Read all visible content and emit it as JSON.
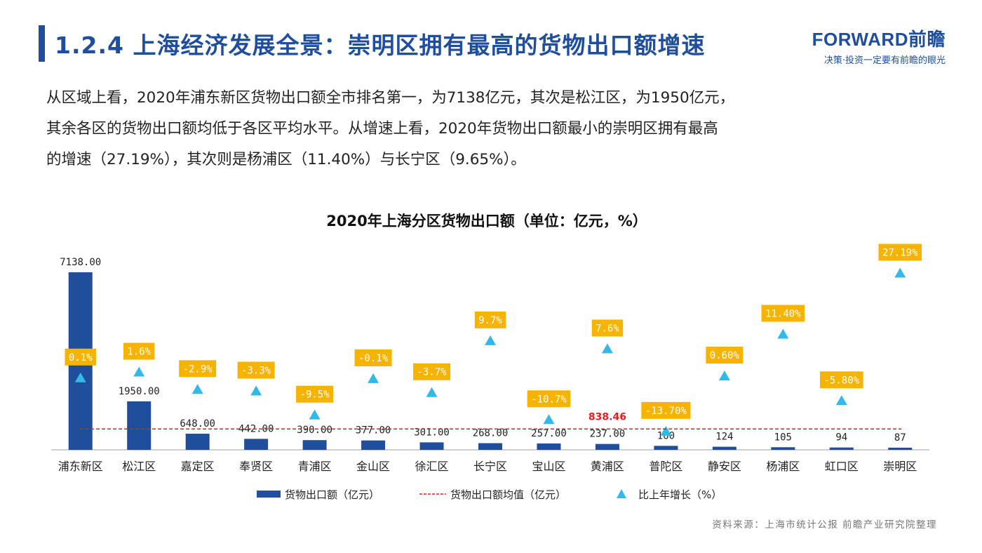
{
  "header": {
    "title": "1.2.4 上海经济发展全景：崇明区拥有最高的货物出口额增速",
    "brand_name": "FORWARD前瞻",
    "brand_tagline": "决策·投资一定要有前瞻的眼光"
  },
  "intro": {
    "lines": [
      "从区域上看，2020年浦东新区货物出口额全市排名第一，为7138亿元，其次是松江区，为1950亿元，",
      "其余各区的货物出口额均低于各区平均水平。从增速上看，2020年货物出口额最小的崇明区拥有最高",
      "的增速（27.19%），其次则是杨浦区（11.40%）与长宁区（9.65%）。"
    ]
  },
  "chart_data": {
    "type": "bar",
    "title": "2020年上海分区货物出口额（单位：亿元，%）",
    "categories": [
      "浦东新区",
      "松江区",
      "嘉定区",
      "奉贤区",
      "青浦区",
      "金山区",
      "徐汇区",
      "长宁区",
      "宝山区",
      "黄浦区",
      "普陀区",
      "静安区",
      "杨浦区",
      "虹口区",
      "崇明区"
    ],
    "series": [
      {
        "name": "货物出口额（亿元）",
        "type": "bar",
        "color": "#1f4e9c",
        "values": [
          7138,
          1950,
          648,
          442,
          390,
          377,
          301,
          268,
          257,
          237,
          160,
          124,
          105,
          94,
          87
        ],
        "labels": [
          "7138.00",
          "1950.00",
          "648.00",
          "442.00",
          "390.00",
          "377.00",
          "301.00",
          "268.00",
          "257.00",
          "237.00",
          "160",
          "124",
          "105",
          "94",
          "87"
        ]
      },
      {
        "name": "货物出口额均值（亿元）",
        "type": "line",
        "color": "#e02020",
        "value": 838.46,
        "label": "838.46"
      },
      {
        "name": "比上年增长（%）",
        "type": "scatter",
        "color": "#33b8ec",
        "values": [
          0.1,
          1.6,
          -2.9,
          -3.3,
          -9.5,
          -0.1,
          -3.7,
          9.7,
          -10.7,
          7.6,
          -13.7,
          0.6,
          11.4,
          -5.8,
          27.19
        ],
        "labels": [
          "0.1%",
          "1.6%",
          "-2.9%",
          "-3.3%",
          "-9.5%",
          "-0.1%",
          "-3.7%",
          "9.7%",
          "-10.7%",
          "7.6%",
          "-13.70%",
          "0.60%",
          "11.40%",
          "-5.80%",
          "27.19%"
        ]
      }
    ],
    "ylim_primary": [
      0,
      7138
    ],
    "ylim_secondary": [
      -15,
      28
    ],
    "grid": false,
    "legend_position": "bottom",
    "label_color": "#f6b400"
  },
  "source": "资料来源：上海市统计公报 前瞻产业研究院整理"
}
